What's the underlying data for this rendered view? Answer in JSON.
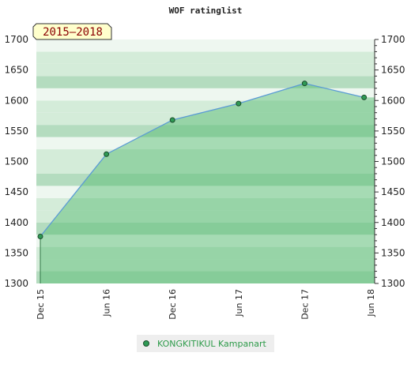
{
  "chart_data": {
    "type": "area",
    "title": "WOF ratinglist",
    "range_label": "2015–2018",
    "categories": [
      "Dec 15",
      "Jun 16",
      "Dec 16",
      "Jun 17",
      "Dec 17",
      "Jun 18"
    ],
    "yticks": [
      1300,
      1350,
      1400,
      1450,
      1500,
      1550,
      1600,
      1650,
      1700
    ],
    "ylim": [
      1300,
      1700
    ],
    "grid": true,
    "legend_position": "bottom",
    "series": [
      {
        "name": "KONGKITIKUL Kampanart",
        "x": [
          0,
          1,
          2,
          3,
          4,
          4.9
        ],
        "values": [
          1377,
          1512,
          1568,
          1595,
          1628,
          1605
        ]
      }
    ]
  },
  "colors": {
    "band_light": "#d4ecd9",
    "band_mid": "#b4dcbf",
    "band_pale": "#eef7f0",
    "area_fill": "#4db86a",
    "line": "#5b9bd5",
    "marker": "#2f9a55"
  }
}
